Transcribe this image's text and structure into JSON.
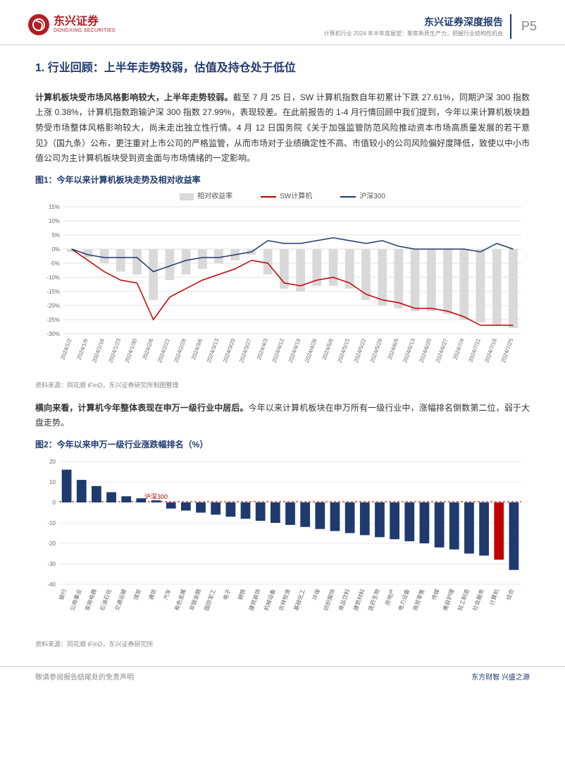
{
  "header": {
    "logo_cn": "东兴证券",
    "logo_en": "DONGXING SECURITIES",
    "report_type": "东兴证券深度报告",
    "report_sub": "计算机行业 2024 年半年度展望：聚焦新质生产力，把握行业结构性机会",
    "page_num": "P5"
  },
  "heading1": "1. 行业回顾：上半年走势较弱，估值及持仓处于低位",
  "para1_bold": "计算机板块受市场风格影响较大，上半年走势较弱。",
  "para1_rest": "截至 7 月 25 日，SW 计算机指数自年初累计下跌 27.61%，同期沪深 300 指数上涨 0.38%，计算机指数跑输沪深 300 指数 27.99%，表现较差。在此前报告的 1-4 月行情回顾中我们提到，今年以来计算机板块趋势受市场整体风格影响较大，尚未走出独立性行情。4 月 12 日国务院《关于加强监管防范风险推动资本市场高质量发展的若干意见》（国九条）公布，更注重对上市公司的严格监管，从而市场对于业绩确定性不高、市值较小的公司风险偏好度降低，致使以中小市值公司为主计算机板块受到资金面与市场情绪的一定影响。",
  "fig1_title": "图1：今年以来计算机板块走势及相对收益率",
  "chart1": {
    "type": "combo",
    "legend": {
      "bar": "相对收益率",
      "line1": "SW计算机",
      "line2": "沪深300"
    },
    "colors": {
      "bar": "#d9d9d9",
      "line1": "#c00000",
      "line2": "#1f3a6e",
      "grid": "#e0e0e0",
      "bg": "#ffffff",
      "axis_text": "#666666"
    },
    "ylim": [
      -30,
      15
    ],
    "ytick_step": 5,
    "x_labels": [
      "2024/1/2",
      "2024/1/9",
      "2024/1/16",
      "2024/1/23",
      "2024/1/30",
      "2024/2/6",
      "2024/2/21",
      "2024/2/28",
      "2024/3/6",
      "2024/3/13",
      "2024/3/20",
      "2024/3/27",
      "2024/4/3",
      "2024/4/12",
      "2024/4/19",
      "2024/4/26",
      "2024/5/8",
      "2024/5/15",
      "2024/5/22",
      "2024/5/29",
      "2024/6/5",
      "2024/6/13",
      "2024/6/20",
      "2024/6/27",
      "2024/7/4",
      "2024/7/11",
      "2024/7/18",
      "2024/7/25"
    ],
    "bar_values": [
      -1,
      -3,
      -5,
      -8,
      -9,
      -18,
      -11,
      -9,
      -7,
      -5,
      -4,
      -2,
      -9,
      -14,
      -15,
      -13,
      -13,
      -14,
      -18,
      -20,
      -21,
      -22,
      -22,
      -23,
      -25,
      -26,
      -27,
      -28
    ],
    "line1_values": [
      0,
      -4,
      -8,
      -11,
      -12,
      -25,
      -17,
      -14,
      -11,
      -9,
      -7,
      -4,
      -5,
      -12,
      -13,
      -11,
      -10,
      -12,
      -16,
      -18,
      -19,
      -21,
      -21,
      -22,
      -24,
      -27,
      -27,
      -27
    ],
    "line2_values": [
      0,
      -2,
      -3,
      -3,
      -3,
      -8,
      -6,
      -4,
      -3,
      -3,
      -2,
      -1,
      3,
      2,
      2,
      3,
      4,
      3,
      2,
      3,
      1,
      0,
      0,
      0,
      0,
      -1,
      2,
      0
    ],
    "axis_fontsize": 8,
    "label_rotate": -70,
    "bar_width": 0.55,
    "line_width": 1.5
  },
  "fig1_source": "资料来源：同花顺 iFinD，东兴证券研究所制图整理",
  "para2_bold": "横向来看，计算机今年整体表现在申万一级行业中居后。",
  "para2_rest": "今年以来计算机板块在申万所有一级行业中，涨幅排名倒数第二位，弱于大盘走势。",
  "fig2_title": "图2：今年以来申万一级行业涨跌幅排名（%）",
  "chart2": {
    "type": "bar",
    "colors": {
      "bar": "#1f3a6e",
      "highlight": "#c00000",
      "ref_line": "#c00000",
      "grid": "#e8e8e8",
      "axis_text": "#666666"
    },
    "ylim": [
      -40,
      20
    ],
    "ytick_step": 10,
    "ref_label": "沪深300",
    "ref_value": 0.4,
    "ref_x": 6,
    "categories": [
      "银行",
      "公用事业",
      "家用电器",
      "石油石化",
      "交通运输",
      "煤炭",
      "通信",
      "汽车",
      "有色金属",
      "非银金融",
      "国防军工",
      "电子",
      "钢铁",
      "建筑装饰",
      "机械设备",
      "农林牧渔",
      "基础化工",
      "环保",
      "纺织服饰",
      "食品饮料",
      "建筑材料",
      "医药生物",
      "房地产",
      "电力设备",
      "商贸零售",
      "传媒",
      "美容护理",
      "轻工制造",
      "社会服务",
      "计算机",
      "综合"
    ],
    "values": [
      16,
      11,
      8,
      5,
      3,
      2,
      1,
      -3,
      -4,
      -5,
      -6,
      -7,
      -8,
      -9,
      -10,
      -11,
      -12,
      -13,
      -14,
      -15,
      -16,
      -17,
      -18,
      -19,
      -20,
      -22,
      -23,
      -25,
      -26,
      -28,
      -33
    ],
    "highlight_idx": 29,
    "axis_fontsize": 8,
    "label_rotate": -70,
    "bar_width": 0.65
  },
  "fig2_source": "资料来源：同花顺 iFinD，东兴证券研究所",
  "footer": {
    "left": "敬请参阅报告结尾处的免责声明",
    "right": "东方财智 兴盛之源"
  }
}
